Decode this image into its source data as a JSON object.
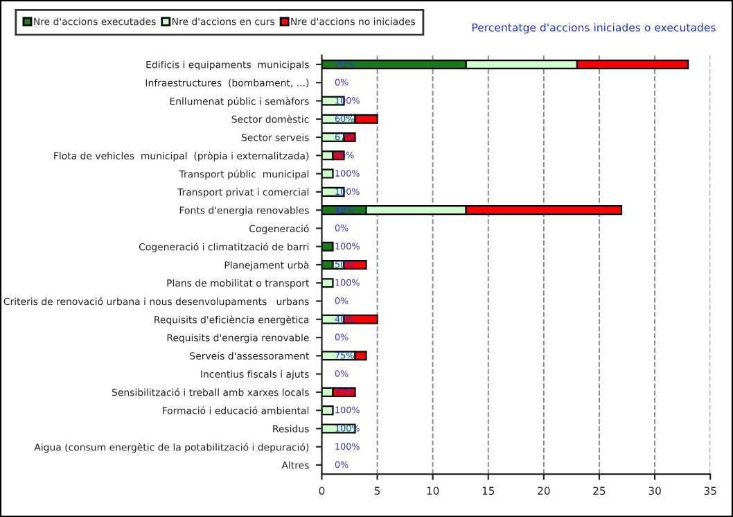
{
  "chart_data": {
    "type": "bar",
    "orientation": "horizontal",
    "stacked": true,
    "title": "Percentatge d'accions iniciades o executades",
    "categories": [
      "Edificis i equipaments  municipals",
      "Infraestructures  (bombament, ...)",
      "Enllumenat públic i semàfors",
      "Sector domèstic",
      "Sector serveis",
      "Flota de vehicles  municipal  (pròpia i externalitzada)",
      "Transport públic  municipal",
      "Transport privat i comercial",
      "Fonts d'energia renovables",
      "Cogeneració",
      "Cogeneració i climatització de barri",
      "Planejament urbà",
      "Plans de mobilitat o transport",
      "Criteris de renovació urbana i nous desenvolupaments   urbans",
      "Requisits d'eficiència energètica",
      "Requisits d'energia renovable",
      "Serveis d'assessorament",
      "Incentius fiscals i ajuts",
      "Sensibilització i treball amb xarxes locals",
      "Formació i educació ambiental",
      "Residus",
      "Aigua (consum energètic de la potabilització i depuració)",
      "Altres"
    ],
    "series": [
      {
        "name": "Nre d'accions executades",
        "color": "#1a7a1a",
        "values": [
          13,
          0,
          0,
          0,
          0,
          0,
          0,
          0,
          4,
          0,
          1,
          1,
          0,
          0,
          0,
          0,
          0,
          0,
          0,
          0,
          0,
          0,
          0
        ]
      },
      {
        "name": "Nre d'accions en curs",
        "color": "#ccffcc",
        "values": [
          10,
          0,
          2,
          3,
          2,
          1,
          1,
          2,
          9,
          0,
          0,
          1,
          1,
          0,
          2,
          0,
          3,
          0,
          1,
          1,
          3,
          0,
          0
        ]
      },
      {
        "name": "Nre d'accions no iniciades",
        "color": "#ff0000",
        "values": [
          10,
          0,
          0,
          2,
          1,
          1,
          0,
          0,
          14,
          0,
          0,
          2,
          0,
          0,
          3,
          0,
          1,
          0,
          2,
          0,
          0,
          0,
          0
        ]
      }
    ],
    "annotations": [
      "70%",
      "0%",
      "100%",
      "60%",
      "67%",
      "50%",
      "100%",
      "100%",
      "48%",
      "0%",
      "100%",
      "50%",
      "100%",
      "0%",
      "40%",
      "0%",
      "75%",
      "0%",
      "33%",
      "100%",
      "100%",
      "100%",
      "0%"
    ],
    "xlim": [
      0,
      35
    ],
    "xticks": [
      0,
      5,
      10,
      15,
      20,
      25,
      30,
      35
    ],
    "grid": "x",
    "legend": "top left"
  }
}
